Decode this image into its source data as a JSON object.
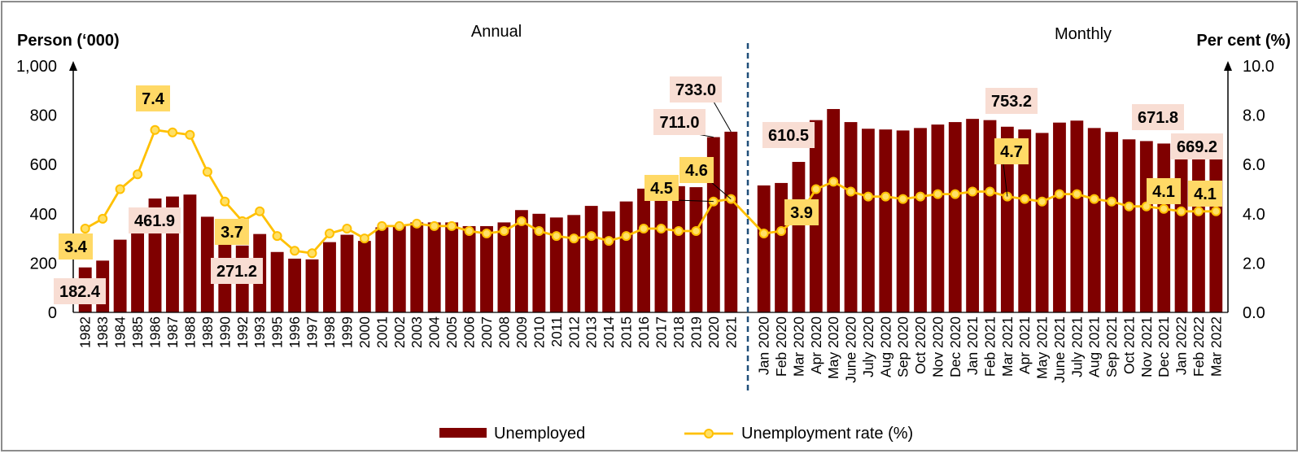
{
  "chart_data": {
    "type": "bar",
    "left_axis_label": "Person (‘000)",
    "right_axis_label": "Per cent (%)",
    "left_ylim": [
      0,
      1000
    ],
    "right_ylim": [
      0,
      10
    ],
    "left_ticks": [
      "0",
      "200",
      "400",
      "600",
      "800",
      "1,000"
    ],
    "right_ticks": [
      "0.0",
      "2.0",
      "4.0",
      "6.0",
      "8.0",
      "10.0"
    ],
    "section_labels": {
      "annual": "Annual",
      "monthly": "Monthly"
    },
    "categories": [
      "1982",
      "1983",
      "1984",
      "1985",
      "1986",
      "1987",
      "1988",
      "1989",
      "1990",
      "1992",
      "1993",
      "1995",
      "1996",
      "1997",
      "1998",
      "1999",
      "2000",
      "2001",
      "2002",
      "2003",
      "2004",
      "2005",
      "2006",
      "2007",
      "2008",
      "2009",
      "2010",
      "2011",
      "2012",
      "2013",
      "2014",
      "2015",
      "2016",
      "2017",
      "2018",
      "2019",
      "2020",
      "2021",
      "Jan 2020",
      "Feb 2020",
      "Mar 2020",
      "Apr 2020",
      "May 2020",
      "June 2020",
      "July 2020",
      "Aug 2020",
      "Sep 2020",
      "Oct 2020",
      "Nov 2020",
      "Dec 2020",
      "Jan 2021",
      "Feb 2021",
      "Mar 2021",
      "Apr 2021",
      "May 2021",
      "June 2021",
      "July 2021",
      "Aug 2021",
      "Sep 2021",
      "Oct 2021",
      "Nov 2021",
      "Dec 2021",
      "Jan 2022",
      "Feb 2022",
      "Mar 2022"
    ],
    "series": [
      {
        "name": "Unemployed",
        "axis": "left",
        "color": "#7f0000",
        "values": [
          182.4,
          210,
          295,
          340,
          461.9,
          470,
          478,
          388,
          325,
          271.2,
          318,
          245,
          218,
          215,
          285,
          315,
          290,
          345,
          350,
          365,
          365,
          365,
          350,
          350,
          365,
          415,
          400,
          385,
          395,
          432,
          410,
          450,
          502,
          505,
          512,
          508,
          711.0,
          733.0,
          515,
          525,
          610.5,
          780,
          825,
          772,
          745,
          742,
          738,
          748,
          762,
          772,
          785,
          780,
          753.2,
          742,
          728,
          770,
          778,
          748,
          732,
          702,
          695,
          685,
          671.8,
          680,
          669.2
        ]
      },
      {
        "name": "Unemployment rate (%)",
        "axis": "right",
        "color": "#ffc000",
        "values": [
          3.4,
          3.8,
          5.0,
          5.6,
          7.4,
          7.3,
          7.2,
          5.7,
          4.5,
          3.7,
          4.1,
          3.1,
          2.5,
          2.4,
          3.2,
          3.4,
          3.0,
          3.5,
          3.5,
          3.6,
          3.5,
          3.5,
          3.3,
          3.2,
          3.3,
          3.7,
          3.3,
          3.1,
          3.0,
          3.1,
          2.9,
          3.1,
          3.4,
          3.4,
          3.3,
          3.3,
          4.5,
          4.6,
          3.2,
          3.3,
          3.9,
          5.0,
          5.3,
          4.9,
          4.7,
          4.7,
          4.6,
          4.7,
          4.8,
          4.8,
          4.9,
          4.9,
          4.7,
          4.6,
          4.5,
          4.8,
          4.8,
          4.6,
          4.5,
          4.3,
          4.3,
          4.2,
          4.1,
          4.1,
          4.1
        ]
      }
    ],
    "annotations": {
      "bars": [
        {
          "index": 0,
          "text": "182.4"
        },
        {
          "index": 4,
          "text": "461.9"
        },
        {
          "index": 9,
          "text": "271.2"
        },
        {
          "index": 36,
          "text": "711.0"
        },
        {
          "index": 37,
          "text": "733.0"
        },
        {
          "index": 40,
          "text": "610.5"
        },
        {
          "index": 52,
          "text": "753.2"
        },
        {
          "index": 62,
          "text": "671.8"
        },
        {
          "index": 64,
          "text": "669.2"
        }
      ],
      "rates": [
        {
          "index": 0,
          "text": "3.4"
        },
        {
          "index": 4,
          "text": "7.4"
        },
        {
          "index": 9,
          "text": "3.7"
        },
        {
          "index": 36,
          "text": "4.5"
        },
        {
          "index": 37,
          "text": "4.6"
        },
        {
          "index": 40,
          "text": "3.9"
        },
        {
          "index": 52,
          "text": "4.7"
        },
        {
          "index": 62,
          "text": "4.1"
        },
        {
          "index": 64,
          "text": "4.1"
        }
      ]
    },
    "legend": {
      "position": "bottom-center"
    },
    "grid": false
  }
}
